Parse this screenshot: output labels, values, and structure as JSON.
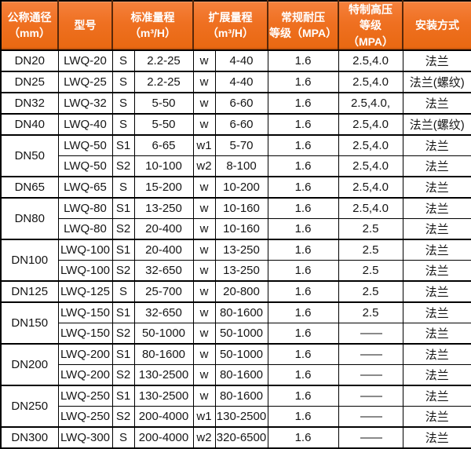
{
  "table": {
    "colors": {
      "header_bg": "#ef7021",
      "header_divider": "#58280a",
      "header_text": "#ffffff",
      "body_text": "#151515",
      "grid": "#000000"
    },
    "headers": [
      {
        "label": "公称通径\n（mm）"
      },
      {
        "label": "型号"
      },
      {
        "label": "标准量程\n（m³/H）"
      },
      {
        "label": "扩展量程\n（m³/H）"
      },
      {
        "label": "常规耐压\n等级（MPA）"
      },
      {
        "label": "特制高压\n等级（MPA）"
      },
      {
        "label": "安装方式"
      }
    ],
    "groups": [
      {
        "dn": "DN20",
        "rows": [
          [
            "LWQ-20",
            "S",
            "2.2-25",
            "w",
            "4-40",
            "1.6",
            "2.5,4.0",
            "法兰"
          ]
        ]
      },
      {
        "dn": "DN25",
        "rows": [
          [
            "LWQ-25",
            "S",
            "2.2-25",
            "w",
            "4-40",
            "1.6",
            "2.5,4.0",
            "法兰(螺纹)"
          ]
        ]
      },
      {
        "dn": "DN32",
        "rows": [
          [
            "LWQ-32",
            "S",
            "5-50",
            "w",
            "6-60",
            "1.6",
            "2.5,4.0,",
            "法兰"
          ]
        ]
      },
      {
        "dn": "DN40",
        "rows": [
          [
            "LWQ-40",
            "S",
            "5-50",
            "w",
            "6-60",
            "1.6",
            "2.5,4.0",
            "法兰(螺纹)"
          ]
        ]
      },
      {
        "dn": "DN50",
        "rows": [
          [
            "LWQ-50",
            "S1",
            "6-65",
            "w1",
            "5-70",
            "1.6",
            "2.5,4.0",
            "法兰"
          ],
          [
            "LWQ-50",
            "S2",
            "10-100",
            "w2",
            "8-100",
            "1.6",
            "2.5,4.0",
            "法兰"
          ]
        ]
      },
      {
        "dn": "DN65",
        "rows": [
          [
            "LWQ-65",
            "S",
            "15-200",
            "w",
            "10-200",
            "1.6",
            "2.5,4.0",
            "法兰"
          ]
        ]
      },
      {
        "dn": "DN80",
        "rows": [
          [
            "LWQ-80",
            "S1",
            "13-250",
            "w",
            "10-160",
            "1.6",
            "2.5,4.0",
            "法兰"
          ],
          [
            "LWQ-80",
            "S2",
            "20-400",
            "w",
            "10-160",
            "1.6",
            "2.5",
            "法兰"
          ]
        ]
      },
      {
        "dn": "DN100",
        "rows": [
          [
            "LWQ-100",
            "S1",
            "20-400",
            "w",
            "13-250",
            "1.6",
            "2.5",
            "法兰"
          ],
          [
            "LWQ-100",
            "S2",
            "32-650",
            "w",
            "13-250",
            "1.6",
            "2.5",
            "法兰"
          ]
        ]
      },
      {
        "dn": "DN125",
        "rows": [
          [
            "LWQ-125",
            "S",
            "25-700",
            "w",
            "20-800",
            "1.6",
            "2.5",
            "法兰"
          ]
        ]
      },
      {
        "dn": "DN150",
        "rows": [
          [
            "LWQ-150",
            "S1",
            "32-650",
            "w",
            "80-1600",
            "1.6",
            "2.5",
            "法兰"
          ],
          [
            "LWQ-150",
            "S2",
            "50-1000",
            "w",
            "50-1000",
            "1.6",
            "——",
            "法兰"
          ]
        ]
      },
      {
        "dn": "DN200",
        "rows": [
          [
            "LWQ-200",
            "S1",
            "80-1600",
            "w",
            "50-1000",
            "1.6",
            "——",
            "法兰"
          ],
          [
            "LWQ-200",
            "S2",
            "130-2500",
            "w",
            "80-1600",
            "1.6",
            "——",
            "法兰"
          ]
        ]
      },
      {
        "dn": "DN250",
        "rows": [
          [
            "LWQ-250",
            "S1",
            "130-2500",
            "w",
            "80-1600",
            "1.6",
            "——",
            "法兰"
          ],
          [
            "LWQ-250",
            "S2",
            "200-4000",
            "w1",
            "130-2500",
            "1.6",
            "——",
            "法兰"
          ]
        ]
      },
      {
        "dn": "DN300",
        "rows": [
          [
            "LWQ-300",
            "S",
            "200-4000",
            "w2",
            "320-6500",
            "1.6",
            "——",
            "法兰"
          ]
        ]
      }
    ]
  }
}
